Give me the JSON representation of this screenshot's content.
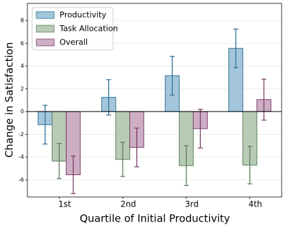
{
  "chart_data": {
    "type": "bar",
    "ylabel": "Change in Satisfaction",
    "xlabel": "Quartile of Initial Productivity",
    "categories": [
      "1st",
      "2nd",
      "3rd",
      "4th"
    ],
    "series": [
      {
        "name": "Productivity",
        "color": "#a3c6db",
        "edgecolor": "#2e6f98",
        "values": [
          -1.15,
          1.25,
          3.15,
          5.55
        ],
        "errors": [
          1.7,
          1.55,
          1.7,
          1.7
        ]
      },
      {
        "name": "Task Allocation",
        "color": "#b8cbb6",
        "edgecolor": "#5a7d58",
        "values": [
          -4.35,
          -4.2,
          -4.75,
          -4.7
        ],
        "errors": [
          1.55,
          1.5,
          1.75,
          1.65
        ]
      },
      {
        "name": "Overall",
        "color": "#cdaec4",
        "edgecolor": "#7a3d68",
        "values": [
          -5.55,
          -3.15,
          -1.5,
          1.05
        ],
        "errors": [
          1.65,
          1.7,
          1.7,
          1.8
        ]
      }
    ],
    "ylim": [
      -7.5,
      9.5
    ],
    "yticks": [
      -6,
      -4,
      -2,
      0,
      2,
      4,
      6,
      8
    ],
    "grid": true,
    "legend": "upper left"
  }
}
